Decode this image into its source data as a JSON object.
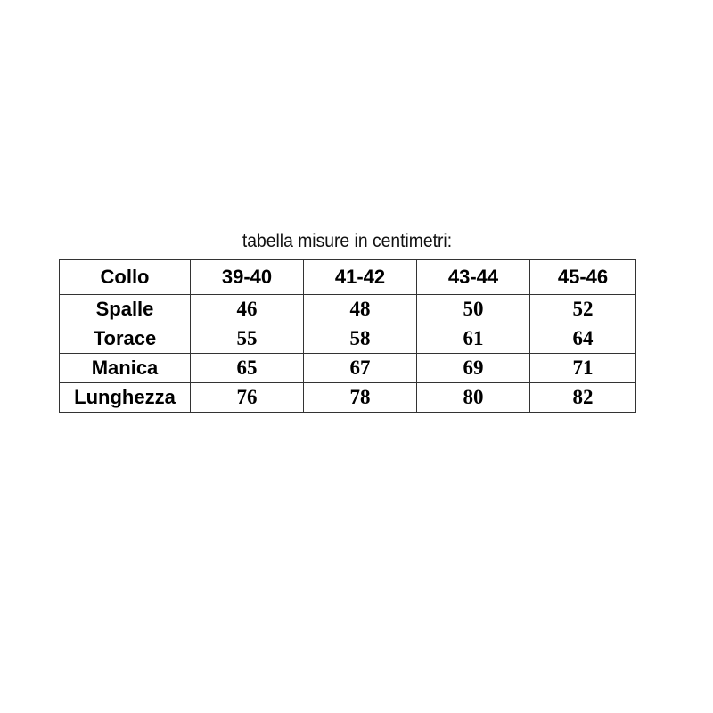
{
  "title": "tabella misure in centimetri:",
  "header": {
    "label": "Collo",
    "sizes": [
      "39-40",
      "41-42",
      "43-44",
      "45-46"
    ]
  },
  "rows": [
    {
      "label": "Spalle",
      "values": [
        "46",
        "48",
        "50",
        "52"
      ]
    },
    {
      "label": "Torace",
      "values": [
        "55",
        "58",
        "61",
        "64"
      ]
    },
    {
      "label": "Manica",
      "values": [
        "65",
        "67",
        "69",
        "71"
      ]
    },
    {
      "label": "Lunghezza",
      "values": [
        "76",
        "78",
        "80",
        "82"
      ]
    }
  ]
}
